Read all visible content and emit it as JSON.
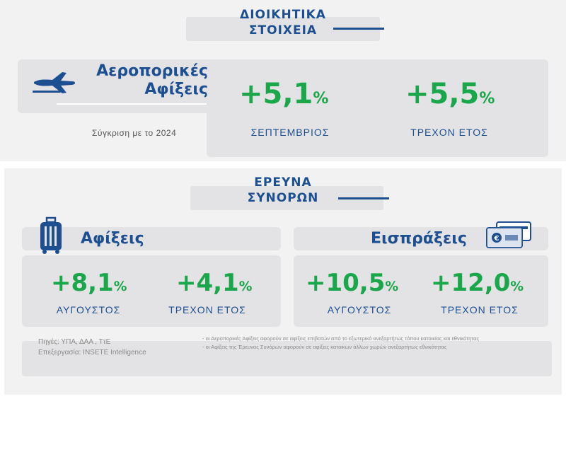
{
  "admin": {
    "title_line1": "ΔΙΟΙΚΗΤΙΚΑ",
    "title_line2": "ΣΤΟΙΧΕΙΑ",
    "heading_line1": "Αεροπορικές",
    "heading_line2": "Αφίξεις",
    "comparison": "Σύγκριση με το 2024",
    "stats": [
      {
        "value": "+5,1",
        "unit": "%",
        "label": "ΣΕΠΤΕΜΒΡΙΟΣ"
      },
      {
        "value": "+5,5",
        "unit": "%",
        "label": "ΤΡΕΧΟΝ ΕΤΟΣ"
      }
    ],
    "icon": "airplane-icon"
  },
  "survey": {
    "title_line1": "ΕΡΕΥΝΑ",
    "title_line2": "ΣΥΝΟΡΩΝ",
    "arrivals": {
      "heading": "Αφίξεις",
      "icon": "suitcase-icon",
      "stats": [
        {
          "value": "+8,1",
          "unit": "%",
          "label": "ΑΥΓΟΥΣΤΟΣ"
        },
        {
          "value": "+4,1",
          "unit": "%",
          "label": "ΤΡΕΧΟΝ ΕΤΟΣ"
        }
      ]
    },
    "receipts": {
      "heading": "Εισπράξεις",
      "icon": "euro-cards-icon",
      "stats": [
        {
          "value": "+10,5",
          "unit": "%",
          "label": "ΑΥΓΟΥΣΤΟΣ"
        },
        {
          "value": "+12,0",
          "unit": "%",
          "label": "ΤΡΕΧΟΝ ΕΤΟΣ"
        }
      ]
    }
  },
  "footer": {
    "sources": "Πηγές: ΥΠΑ, ΔΑΑ , ΤτΕ",
    "processing": "Επεξεργασία: INSETE Intelligence",
    "note1": "- οι Αεροπορικές Αφίξεις αφορούν σε αφίξεις επιβατών από το εξωτερικό ανεξαρτήτως τόπου κατοικίας και εθνικότητας",
    "note2": "- οι Αφίξεις της Έρευνας Συνόρων αφορούν σε αφίξεις κατοίκων άλλων χωρών ανεξαρτήτως εθνικότητας"
  },
  "colors": {
    "blue": "#1d4f91",
    "green": "#1aa64a",
    "panel": "#f2f2f2",
    "card": "#e3e3e5"
  }
}
